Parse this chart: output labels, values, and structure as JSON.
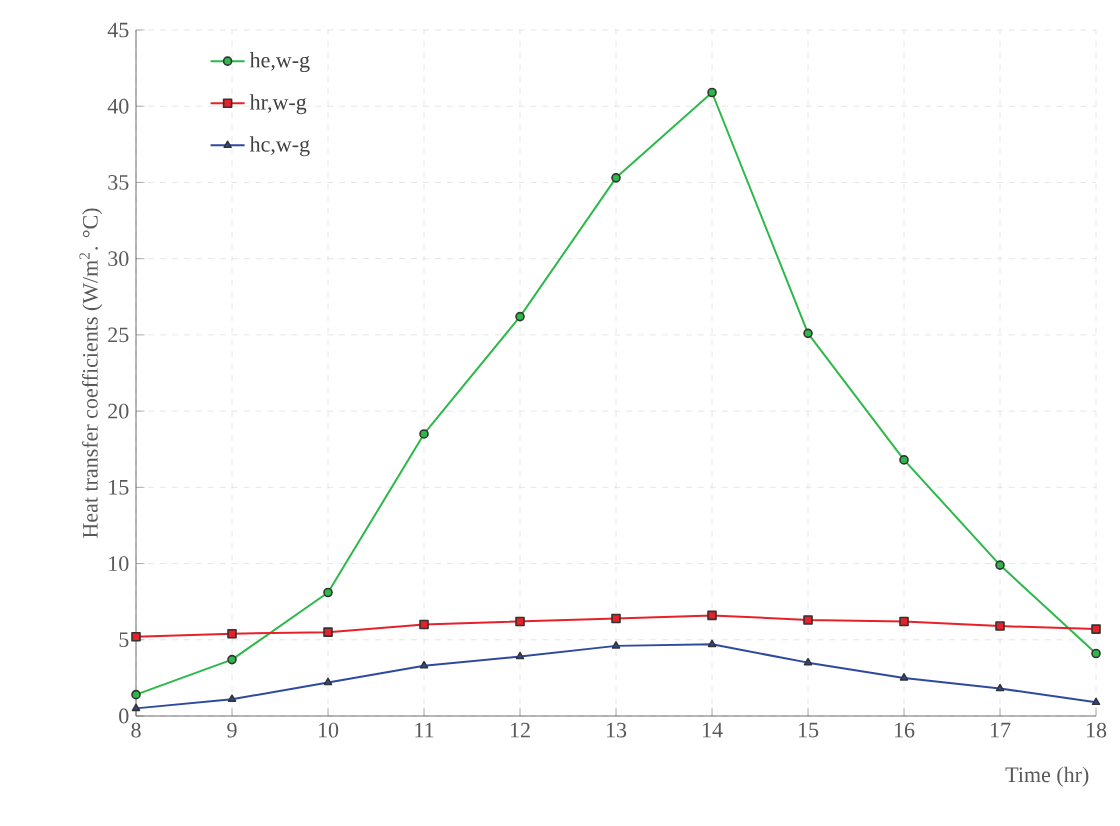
{
  "chart_data": {
    "type": "line",
    "xlabel": "Time (hr)",
    "ylabel": "Heat transfer coefficients (W/m$^{2}$. °C)",
    "x": [
      8,
      9,
      10,
      11,
      12,
      13,
      14,
      15,
      16,
      17,
      18
    ],
    "series": [
      {
        "name": "he,w-g",
        "color": "#2db84a",
        "marker": "circle",
        "values": [
          1.4,
          3.7,
          8.1,
          18.5,
          26.2,
          35.3,
          40.9,
          25.1,
          16.8,
          9.9,
          4.1
        ]
      },
      {
        "name": "hr,w-g",
        "color": "#e8202a",
        "marker": "square",
        "values": [
          5.2,
          5.4,
          5.5,
          6.0,
          6.2,
          6.4,
          6.6,
          6.3,
          6.2,
          5.9,
          5.7
        ]
      },
      {
        "name": "hc,w-g",
        "color": "#2e4a9e",
        "marker": "triangle",
        "values": [
          0.5,
          1.1,
          2.2,
          3.3,
          3.9,
          4.6,
          4.7,
          3.5,
          2.5,
          1.8,
          0.9
        ]
      }
    ],
    "xlim": [
      8,
      18
    ],
    "ylim": [
      0,
      45
    ],
    "xticks": [
      8,
      9,
      10,
      11,
      12,
      13,
      14,
      15,
      16,
      17,
      18
    ],
    "yticks": [
      0,
      5,
      10,
      15,
      20,
      25,
      30,
      35,
      40,
      45
    ],
    "grid": true,
    "legend": "top left",
    "line_style": "solid"
  }
}
